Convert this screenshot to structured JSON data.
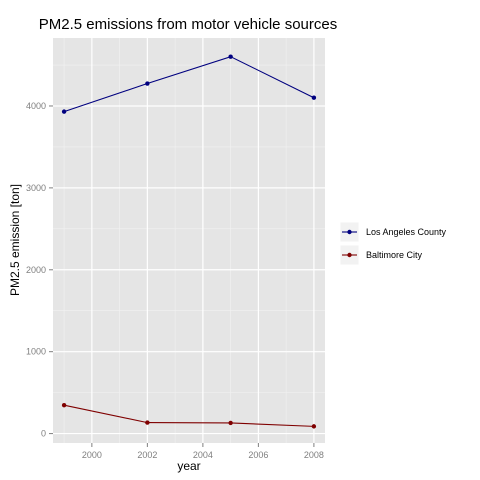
{
  "chart_data": {
    "type": "line",
    "title": "PM2.5 emissions from motor vehicle sources",
    "xlabel": "year",
    "ylabel": "PM2.5 emission [ton]",
    "x": [
      1999,
      2002,
      2005,
      2008
    ],
    "xticks": [
      2000,
      2002,
      2004,
      2006,
      2008
    ],
    "yticks": [
      0,
      1000,
      2000,
      3000,
      4000
    ],
    "xlim": [
      1998.6,
      2008.4
    ],
    "ylim": [
      -115,
      4830
    ],
    "grid": true,
    "legend_position": "right",
    "series": [
      {
        "name": "Los Angeles County",
        "color": "#00007f",
        "values": [
          3931,
          4274,
          4602,
          4101
        ]
      },
      {
        "name": "Baltimore City",
        "color": "#7f0000",
        "values": [
          347,
          134,
          130,
          88
        ]
      }
    ]
  },
  "colors": {
    "panel_background": "#e5e5e5",
    "grid_major": "#ffffff",
    "grid_minor": "#f2f2f2",
    "tick_text": "#7f7f7f"
  }
}
